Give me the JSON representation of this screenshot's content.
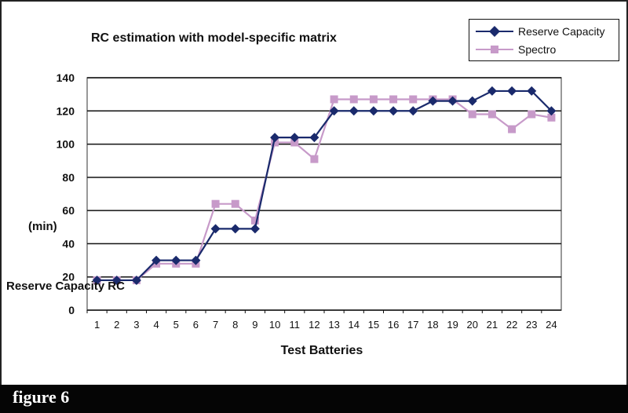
{
  "figure_label": "figure 6",
  "chart_data": {
    "type": "line",
    "title": "RC estimation with model-specific matrix",
    "xlabel": "Test Batteries",
    "ylabel_unit": "(min)",
    "ylabel": "Reserve Capacity RC",
    "ylim": [
      0,
      140
    ],
    "yticks": [
      0,
      20,
      40,
      60,
      80,
      100,
      120,
      140
    ],
    "grid": "horizontal",
    "legend_position": "top-right",
    "categories": [
      "1",
      "2",
      "3",
      "4",
      "5",
      "6",
      "7",
      "8",
      "9",
      "10",
      "11",
      "12",
      "13",
      "14",
      "15",
      "16",
      "17",
      "18",
      "19",
      "20",
      "21",
      "22",
      "23",
      "24"
    ],
    "series": [
      {
        "name": "Reserve Capacity",
        "color": "#1a2a6c",
        "marker": "diamond",
        "values": [
          18,
          18,
          18,
          30,
          30,
          30,
          49,
          49,
          49,
          104,
          104,
          104,
          120,
          120,
          120,
          120,
          120,
          126,
          126,
          126,
          132,
          132,
          132,
          120
        ]
      },
      {
        "name": "Spectro",
        "color": "#c79ac9",
        "marker": "square",
        "values": [
          18,
          18,
          18,
          28,
          28,
          28,
          64,
          64,
          54,
          101,
          101,
          91,
          127,
          127,
          127,
          127,
          127,
          127,
          127,
          118,
          118,
          109,
          118,
          116
        ]
      }
    ]
  }
}
